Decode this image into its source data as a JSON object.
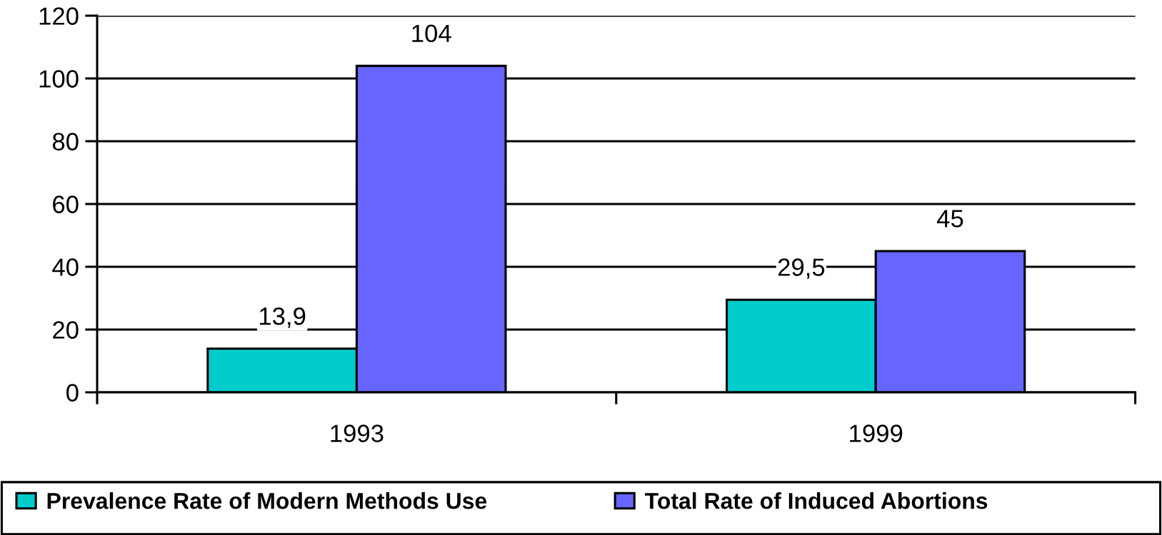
{
  "chart_data": {
    "type": "bar",
    "categories": [
      "1993",
      "1999"
    ],
    "series": [
      {
        "name": "Prevalence Rate of Modern Methods Use",
        "color": "#00cccc",
        "values": [
          13.9,
          29.5
        ],
        "value_labels": [
          "13,9",
          "29,5"
        ]
      },
      {
        "name": "Total Rate of Induced Abortions",
        "color": "#6666ff",
        "values": [
          104,
          45
        ],
        "value_labels": [
          "104",
          "45"
        ]
      }
    ],
    "ylim": [
      0,
      120
    ],
    "yticks": [
      0,
      20,
      40,
      60,
      80,
      100,
      120
    ],
    "grid": "y",
    "legend": "bottom"
  }
}
